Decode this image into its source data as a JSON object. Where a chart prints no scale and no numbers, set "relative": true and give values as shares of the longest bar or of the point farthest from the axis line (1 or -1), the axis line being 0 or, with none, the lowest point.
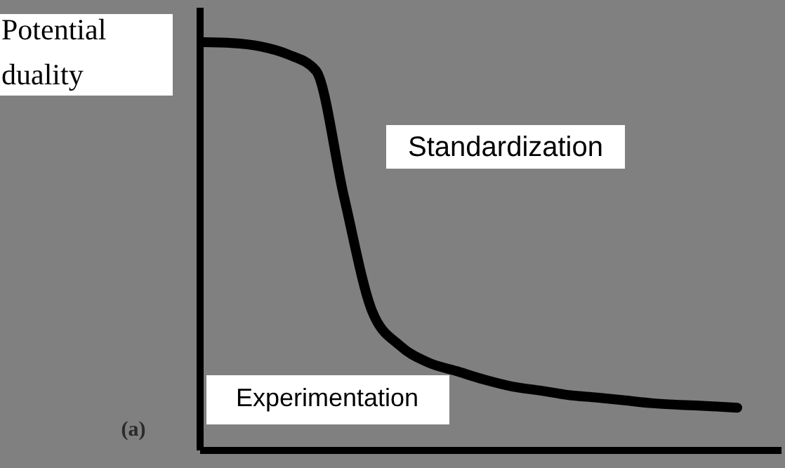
{
  "chart_data": {
    "type": "line",
    "relative": true,
    "ylabel": "Potential duality",
    "categories": [
      null,
      null,
      null,
      null,
      null,
      null,
      null,
      null,
      null,
      null,
      null,
      null,
      null,
      null,
      null,
      null,
      null,
      null,
      null,
      null
    ],
    "series": [
      {
        "color": "#000000",
        "values": [
          1.0,
          0.998,
          0.99,
          0.97,
          0.93,
          0.62,
          0.34,
          0.255,
          0.214,
          0.193,
          0.172,
          0.155,
          0.145,
          0.134,
          0.128,
          0.121,
          0.114,
          0.11,
          0.107,
          0.103
        ]
      }
    ],
    "annotations": [
      "Standardization",
      "Experimentation",
      "(a)"
    ],
    "grid": false
  }
}
